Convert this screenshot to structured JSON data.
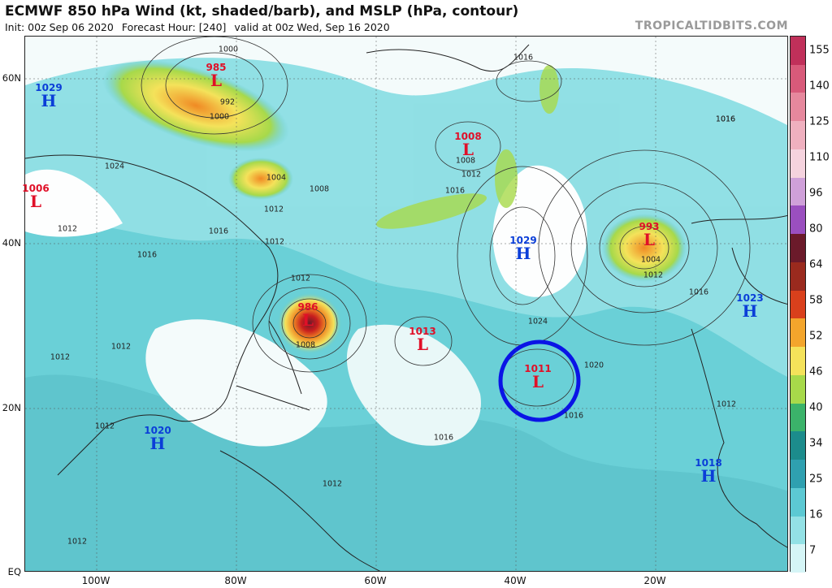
{
  "header": {
    "title": "ECMWF 850 hPa Wind (kt, shaded/barb), and MSLP (hPa, contour)",
    "init": "Init: 00z Sep 06 2020",
    "forecast_hour": "Forecast Hour: [240]",
    "valid": "valid at 00z Wed, Sep 16 2020",
    "brand": "TROPICALTIDBITS.COM"
  },
  "colors": {
    "low": "#e01028",
    "high": "#0b3ed8",
    "circle": "#0a14e6",
    "land_bg": "#f4fbfb",
    "wind_shade": "#53d1d6"
  },
  "colorbar": {
    "labels": [
      "155",
      "140",
      "125",
      "110",
      "96",
      "80",
      "64",
      "58",
      "52",
      "46",
      "40",
      "34",
      "25",
      "16",
      "7"
    ],
    "colors": [
      "#c0305a",
      "#d85a7a",
      "#e6889d",
      "#efb0bf",
      "#f5d3de",
      "#cfa0d9",
      "#9a4fbf",
      "#6b1a2a",
      "#9a2a1e",
      "#d9401c",
      "#f3a52c",
      "#f4e25a",
      "#a7d94a",
      "#3bb36a",
      "#1c8c8c",
      "#2fa0b0",
      "#5cc9d3",
      "#93e1e5",
      "#d5f5f6"
    ]
  },
  "axes": {
    "lat_labels": [
      "60N",
      "40N",
      "20N",
      "EQ"
    ],
    "lon_labels": [
      "100W",
      "80W",
      "60W",
      "40W",
      "20W"
    ]
  },
  "systems": [
    {
      "type": "high",
      "pressure": "1029",
      "letter": "H"
    },
    {
      "type": "low",
      "pressure": "985",
      "letter": "L"
    },
    {
      "type": "low",
      "pressure": "1006",
      "letter": "L"
    },
    {
      "type": "low",
      "pressure": "1008",
      "letter": "L"
    },
    {
      "type": "high",
      "pressure": "1029",
      "letter": "H"
    },
    {
      "type": "low",
      "pressure": "993",
      "letter": "L"
    },
    {
      "type": "high",
      "pressure": "1023",
      "letter": "H"
    },
    {
      "type": "low",
      "pressure": "986",
      "letter": "L"
    },
    {
      "type": "low",
      "pressure": "1013",
      "letter": "L"
    },
    {
      "type": "low",
      "pressure": "1011",
      "letter": "L"
    },
    {
      "type": "high",
      "pressure": "1020",
      "letter": "H"
    },
    {
      "type": "high",
      "pressure": "1018",
      "letter": "H"
    }
  ],
  "isobar_labels": [
    "1000",
    "992",
    "1000",
    "1016",
    "1024",
    "1004",
    "1012",
    "1008",
    "1012",
    "1016",
    "1012",
    "1016",
    "1016",
    "1012",
    "1008",
    "1024",
    "1020",
    "1016",
    "1016",
    "1012",
    "1016",
    "1004",
    "1012",
    "1016",
    "1012",
    "1012",
    "1012",
    "1012",
    "1008",
    "1016",
    "1012",
    "1012"
  ]
}
